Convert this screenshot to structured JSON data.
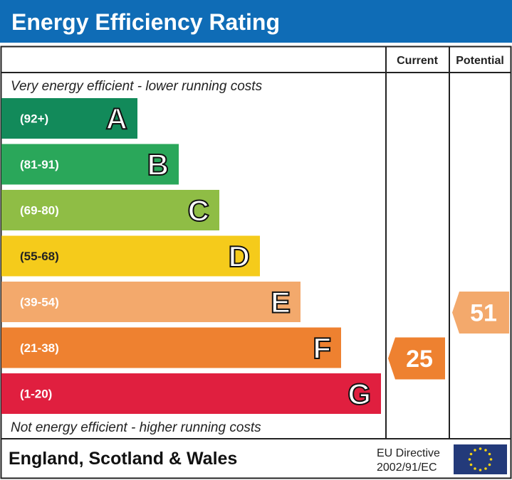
{
  "title": "Energy Efficiency Rating",
  "header_color": "#0f6cb6",
  "columns": {
    "current": "Current",
    "potential": "Potential"
  },
  "top_note": "Very energy efficient - lower running costs",
  "bottom_note": "Not energy efficient - higher running costs",
  "footer": {
    "region": "England, Scotland & Wales",
    "directive_line1": "EU Directive",
    "directive_line2": "2002/91/EC",
    "flag_icon": "eu-flag-icon"
  },
  "chart_data": {
    "type": "bar",
    "categories": [
      "A",
      "B",
      "C",
      "D",
      "E",
      "F",
      "G"
    ],
    "ranges": [
      "(92+)",
      "(81-91)",
      "(69-80)",
      "(55-68)",
      "(39-54)",
      "(21-38)",
      "(1-20)"
    ],
    "colors": [
      "#128a5a",
      "#2aa75a",
      "#8fbd45",
      "#f5cb1b",
      "#f3a96c",
      "#ee8130",
      "#e01f3f"
    ],
    "current": {
      "value": "25",
      "band": "F",
      "color": "#ee8130"
    },
    "potential": {
      "value": "51",
      "band": "E",
      "color": "#f3a96c"
    }
  }
}
